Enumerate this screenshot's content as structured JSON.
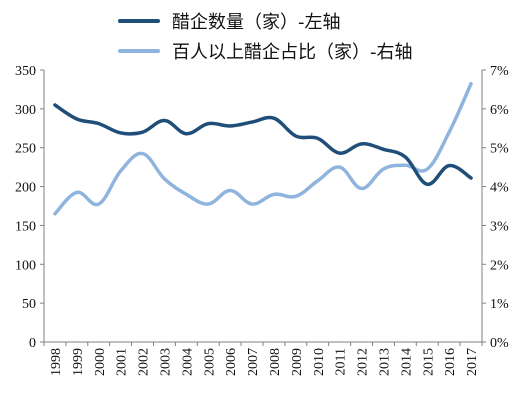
{
  "chart_data": {
    "type": "line",
    "categories": [
      "1998",
      "1999",
      "2000",
      "2001",
      "2002",
      "2003",
      "2004",
      "2005",
      "2006",
      "2007",
      "2008",
      "2009",
      "2010",
      "2011",
      "2012",
      "2013",
      "2014",
      "2015",
      "2016",
      "2017"
    ],
    "series": [
      {
        "name": "醋企数量（家）-左轴",
        "axis": "left",
        "color": "#1f4e79",
        "values": [
          305,
          287,
          281,
          269,
          270,
          285,
          268,
          281,
          278,
          283,
          288,
          265,
          262,
          243,
          255,
          248,
          238,
          203,
          227,
          211
        ]
      },
      {
        "name": "百人以上醋企占比（家）-右轴",
        "axis": "right",
        "color": "#8fb4de",
        "values": [
          3.3,
          3.85,
          3.55,
          4.4,
          4.85,
          4.2,
          3.8,
          3.55,
          3.9,
          3.55,
          3.8,
          3.75,
          4.15,
          4.5,
          3.95,
          4.45,
          4.55,
          4.45,
          5.4,
          6.65
        ]
      }
    ],
    "y_left": {
      "min": 0,
      "max": 350,
      "step": 50,
      "ticks": [
        "0",
        "50",
        "100",
        "150",
        "200",
        "250",
        "300",
        "350"
      ]
    },
    "y_right": {
      "min": 0,
      "max": 7,
      "step": 1,
      "ticks": [
        "0%",
        "1%",
        "2%",
        "3%",
        "4%",
        "5%",
        "6%",
        "7%"
      ]
    },
    "grid": false,
    "legend_position": "top"
  }
}
